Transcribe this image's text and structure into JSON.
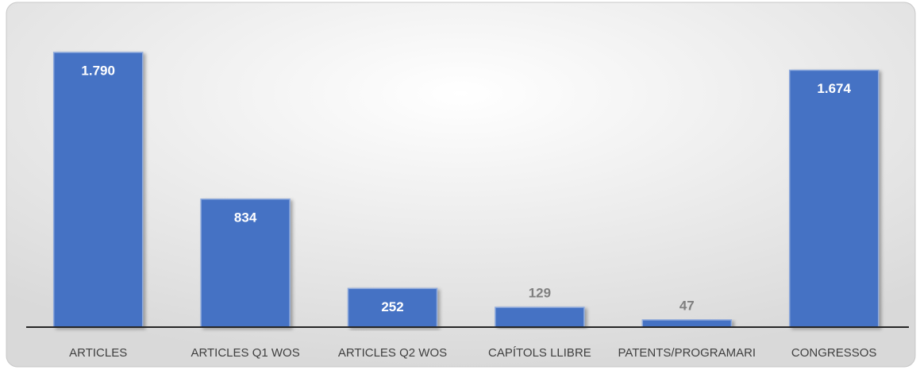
{
  "chart_data": {
    "type": "bar",
    "categories": [
      "ARTICLES",
      "ARTICLES Q1 WOS",
      "ARTICLES Q2 WOS",
      "CAPÍTOLS LLIBRE",
      "PATENTS/PROGRAMARI",
      "CONGRESSOS"
    ],
    "values": [
      1790,
      834,
      252,
      129,
      47,
      1674
    ],
    "value_labels": [
      "1.790",
      "834",
      "252",
      "129",
      "47",
      "1.674"
    ],
    "color": "#4472c4"
  }
}
